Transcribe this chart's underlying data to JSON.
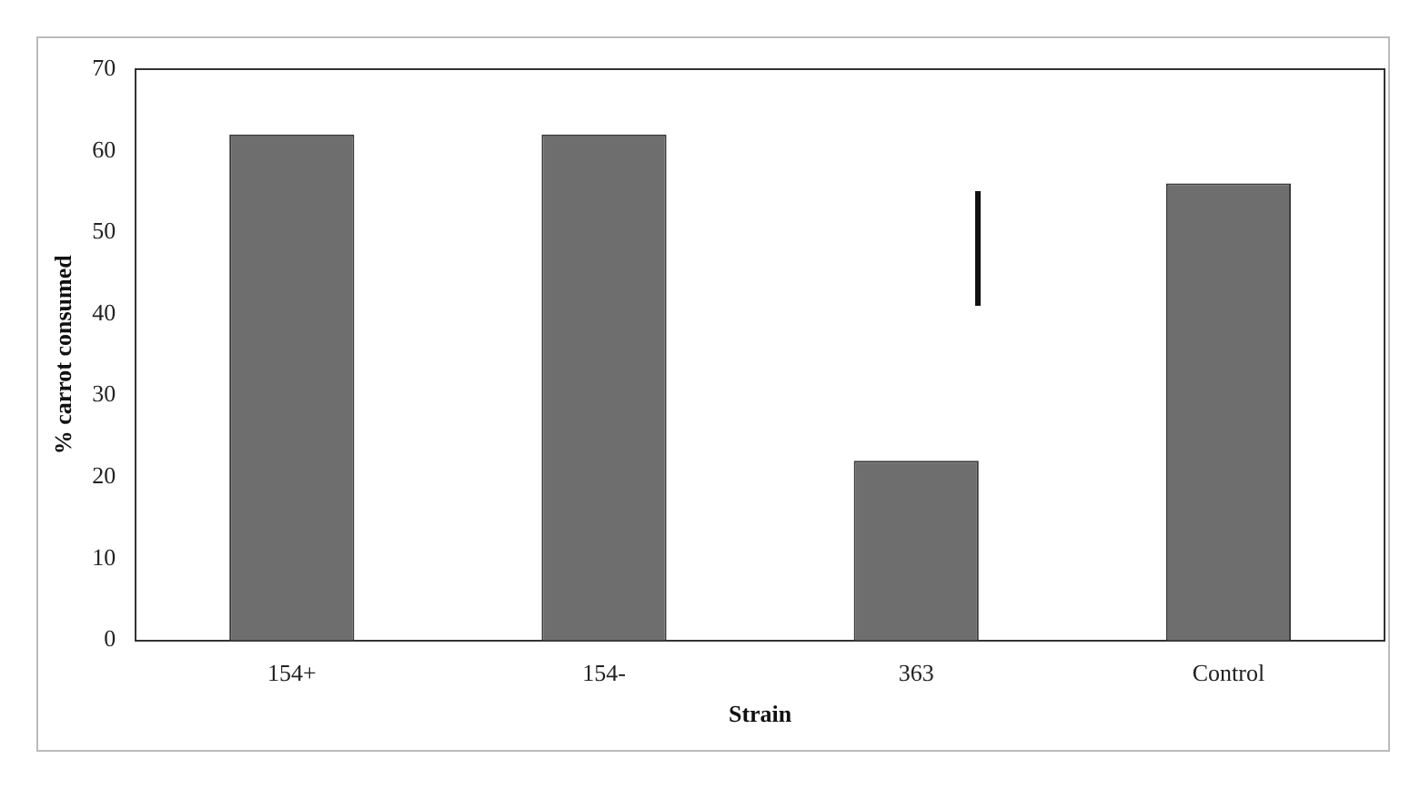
{
  "chart_data": {
    "type": "bar",
    "xlabel": "Strain",
    "ylabel": "% carrot consumed",
    "categories": [
      "154+",
      "154-",
      "363",
      "Control"
    ],
    "values": [
      62,
      62,
      22,
      56
    ],
    "color": "#6e6e6e",
    "ylim": [
      0,
      70
    ],
    "yticks": [
      0,
      10,
      20,
      30,
      40,
      50,
      60,
      70
    ],
    "grid": false,
    "legend": false
  }
}
